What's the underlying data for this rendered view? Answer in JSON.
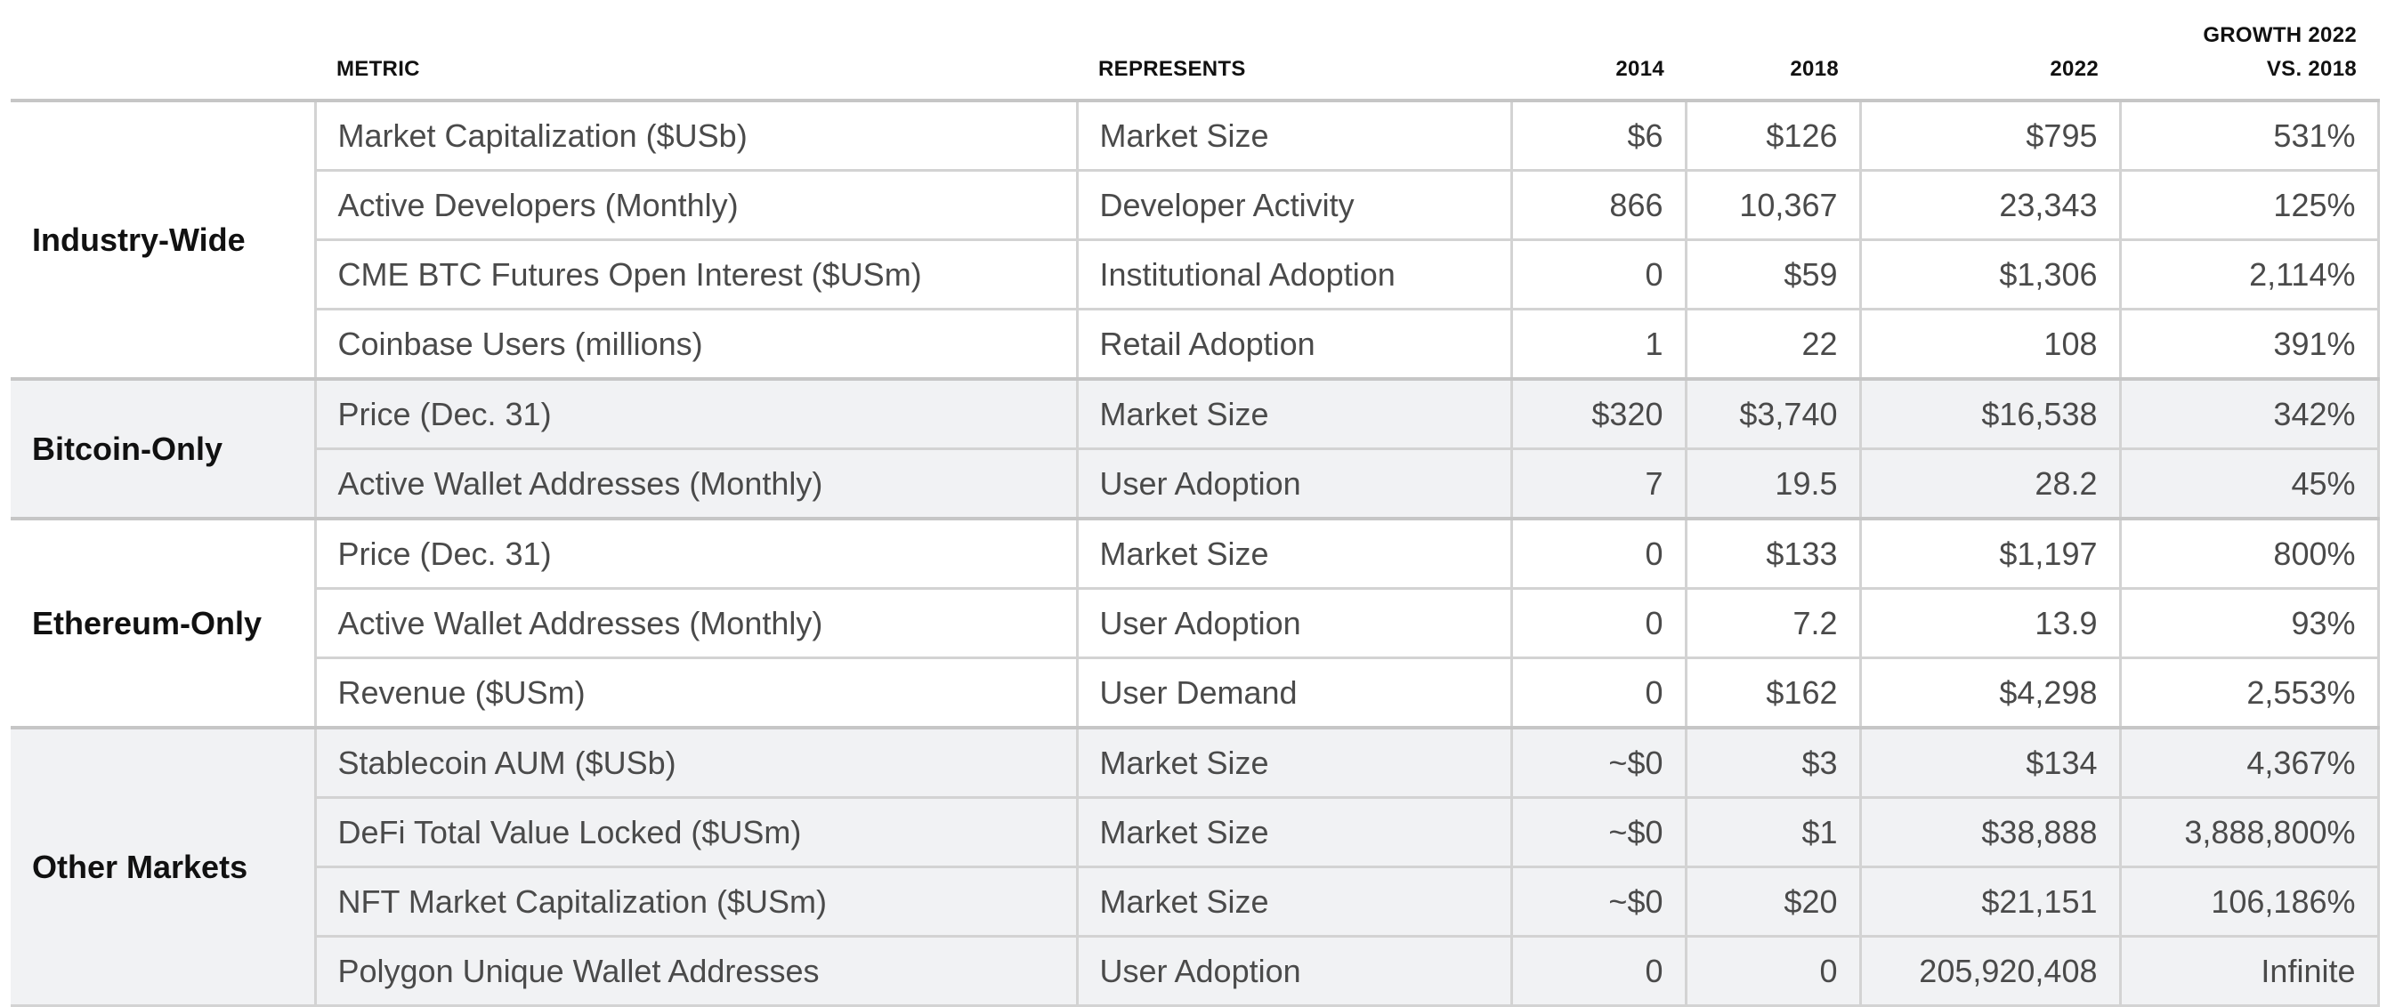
{
  "headers": {
    "metric": "METRIC",
    "represents": "REPRESENTS",
    "y2014": "2014",
    "y2018": "2018",
    "y2022": "2022",
    "growth_line1": "GROWTH 2022",
    "growth_line2": "VS. 2018"
  },
  "groups": [
    {
      "label": "Industry-Wide",
      "rows": [
        {
          "metric": "Market Capitalization ($USb)",
          "represents": "Market Size",
          "y2014": "$6",
          "y2018": "$126",
          "y2022": "$795",
          "growth": "531%"
        },
        {
          "metric": "Active Developers (Monthly)",
          "represents": "Developer Activity",
          "y2014": "866",
          "y2018": "10,367",
          "y2022": "23,343",
          "growth": "125%"
        },
        {
          "metric": "CME BTC Futures Open Interest ($USm)",
          "represents": "Institutional Adoption",
          "y2014": "0",
          "y2018": "$59",
          "y2022": "$1,306",
          "growth": "2,114%"
        },
        {
          "metric": "Coinbase Users (millions)",
          "represents": "Retail Adoption",
          "y2014": "1",
          "y2018": "22",
          "y2022": "108",
          "growth": "391%"
        }
      ]
    },
    {
      "label": "Bitcoin-Only",
      "rows": [
        {
          "metric": "Price (Dec. 31)",
          "represents": "Market Size",
          "y2014": "$320",
          "y2018": "$3,740",
          "y2022": "$16,538",
          "growth": "342%"
        },
        {
          "metric": "Active Wallet Addresses (Monthly)",
          "represents": "User Adoption",
          "y2014": "7",
          "y2018": "19.5",
          "y2022": "28.2",
          "growth": "45%"
        }
      ]
    },
    {
      "label": "Ethereum-Only",
      "rows": [
        {
          "metric": "Price (Dec. 31)",
          "represents": "Market Size",
          "y2014": "0",
          "y2018": "$133",
          "y2022": "$1,197",
          "growth": "800%"
        },
        {
          "metric": "Active Wallet Addresses (Monthly)",
          "represents": "User Adoption",
          "y2014": "0",
          "y2018": "7.2",
          "y2022": "13.9",
          "growth": "93%"
        },
        {
          "metric": "Revenue ($USm)",
          "represents": "User Demand",
          "y2014": "0",
          "y2018": "$162",
          "y2022": "$4,298",
          "growth": "2,553%"
        }
      ]
    },
    {
      "label": "Other Markets",
      "rows": [
        {
          "metric": "Stablecoin AUM ($USb)",
          "represents": "Market Size",
          "y2014": "~$0",
          "y2018": "$3",
          "y2022": "$134",
          "growth": "4,367%"
        },
        {
          "metric": "DeFi Total Value Locked ($USm)",
          "represents": "Market Size",
          "y2014": "~$0",
          "y2018": "$1",
          "y2022": "$38,888",
          "growth": "3,888,800%"
        },
        {
          "metric": "NFT Market Capitalization ($USm)",
          "represents": "Market Size",
          "y2014": "~$0",
          "y2018": "$20",
          "y2022": "$21,151",
          "growth": "106,186%"
        },
        {
          "metric": "Polygon Unique Wallet Addresses",
          "represents": "User Adoption",
          "y2014": "0",
          "y2018": "0",
          "y2022": "205,920,408",
          "growth": "Infinite"
        }
      ]
    }
  ],
  "colors": {
    "shaded_band": "#f1f2f4",
    "grid_line": "#d3d3d3",
    "body_text": "#4a4a4a",
    "header_text": "#111111"
  }
}
